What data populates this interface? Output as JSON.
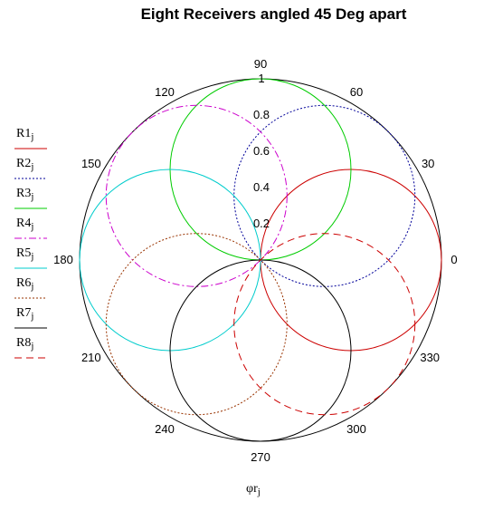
{
  "chart_data": {
    "type": "polar",
    "title": "Eight Receivers angled 45 Deg apart",
    "xlabel": "φr",
    "xlabel_subscript": "j",
    "angle_ticks": [
      "0",
      "30",
      "60",
      "90",
      "120",
      "150",
      "180",
      "210",
      "240",
      "270",
      "300",
      "330"
    ],
    "angle_tick_degrees": [
      0,
      30,
      60,
      90,
      120,
      150,
      180,
      210,
      240,
      270,
      300,
      330
    ],
    "radial_ticks": [
      "0.2",
      "0.4",
      "0.6",
      "0.8",
      "1"
    ],
    "radial_tick_values": [
      0.2,
      0.4,
      0.6,
      0.8,
      1
    ],
    "rlim": [
      0,
      1
    ],
    "legend_position": "left",
    "series": [
      {
        "name": "R1",
        "subscript": "j",
        "color": "#cc0000",
        "dash": "solid",
        "peak_angle_deg": 0,
        "peak_value": 1
      },
      {
        "name": "R2",
        "subscript": "j",
        "color": "#000099",
        "dash": "dotted",
        "peak_angle_deg": 45,
        "peak_value": 1
      },
      {
        "name": "R3",
        "subscript": "j",
        "color": "#00cc00",
        "dash": "solid",
        "peak_angle_deg": 90,
        "peak_value": 1
      },
      {
        "name": "R4",
        "subscript": "j",
        "color": "#cc00cc",
        "dash": "dashdot",
        "peak_angle_deg": 135,
        "peak_value": 1
      },
      {
        "name": "R5",
        "subscript": "j",
        "color": "#00cccc",
        "dash": "solid",
        "peak_angle_deg": 180,
        "peak_value": 1
      },
      {
        "name": "R6",
        "subscript": "j",
        "color": "#993300",
        "dash": "dotted",
        "peak_angle_deg": 225,
        "peak_value": 1
      },
      {
        "name": "R7",
        "subscript": "j",
        "color": "#000000",
        "dash": "solid",
        "peak_angle_deg": 270,
        "peak_value": 1
      },
      {
        "name": "R8",
        "subscript": "j",
        "color": "#cc0000",
        "dash": "dashed",
        "peak_angle_deg": 315,
        "peak_value": 1
      }
    ]
  }
}
